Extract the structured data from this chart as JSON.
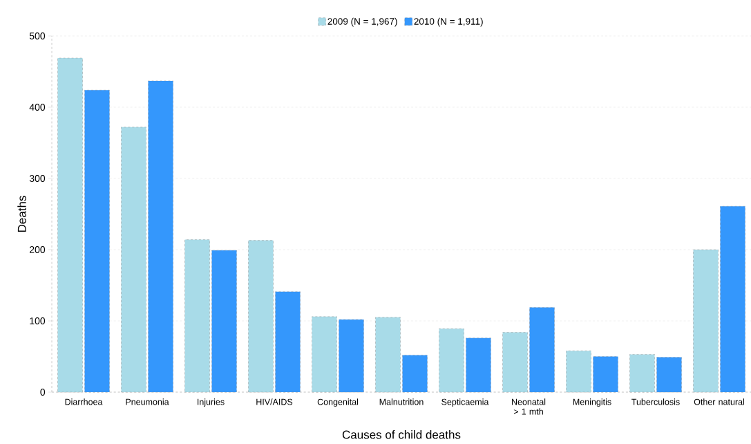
{
  "chart_data": {
    "type": "bar",
    "xlabel": "Causes of child deaths",
    "ylabel": "Deaths",
    "categories": [
      "Diarrhoea",
      "Pneumonia",
      "Injuries",
      "HIV/AIDS",
      "Congenital",
      "Malnutrition",
      "Septicaemia",
      "Neonatal > 1 mth",
      "Meningitis",
      "Tuberculosis",
      "Other natural"
    ],
    "series": [
      {
        "name": "2009 (N = 1,967)",
        "color": "#a8dbe8",
        "values": [
          469,
          372,
          214,
          213,
          106,
          105,
          89,
          84,
          58,
          53,
          200
        ]
      },
      {
        "name": "2010 (N = 1,911)",
        "color": "#3497fc",
        "values": [
          424,
          437,
          199,
          141,
          102,
          52,
          76,
          119,
          50,
          49,
          261
        ]
      }
    ],
    "ylim": [
      0,
      500
    ],
    "yticks": [
      0,
      100,
      200,
      300,
      400,
      500
    ],
    "grid": "y",
    "legend": "top"
  }
}
